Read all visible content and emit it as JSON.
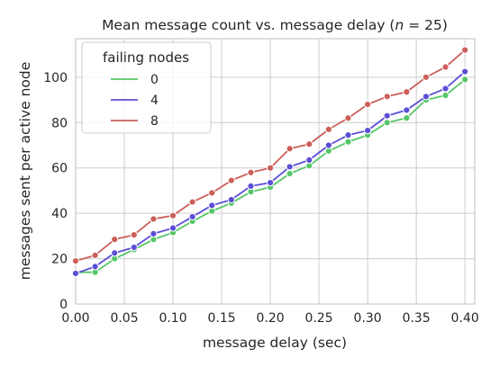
{
  "chart_data": {
    "type": "line",
    "title_prefix": "Mean message count vs. message delay (",
    "title_var": "n",
    "title_suffix": " = 25)",
    "xlabel": "message delay (sec)",
    "ylabel": "messages sent per active node",
    "xlim": [
      0.0,
      0.41
    ],
    "ylim": [
      0,
      117
    ],
    "xticks": [
      0.0,
      0.05,
      0.1,
      0.15,
      0.2,
      0.25,
      0.3,
      0.35,
      0.4
    ],
    "xtick_labels": [
      "0.00",
      "0.05",
      "0.10",
      "0.15",
      "0.20",
      "0.25",
      "0.30",
      "0.35",
      "0.40"
    ],
    "yticks": [
      0,
      20,
      40,
      60,
      80,
      100
    ],
    "ytick_labels": [
      "0",
      "20",
      "40",
      "60",
      "80",
      "100"
    ],
    "grid": true,
    "legend": {
      "title": "failing nodes",
      "placement": "top-left"
    },
    "x": [
      0.0,
      0.02,
      0.04,
      0.06,
      0.08,
      0.1,
      0.12,
      0.14,
      0.16,
      0.18,
      0.2,
      0.22,
      0.24,
      0.26,
      0.28,
      0.3,
      0.32,
      0.34,
      0.36,
      0.38,
      0.4
    ],
    "series": [
      {
        "name": "0",
        "color": "#55c667",
        "values": [
          14,
          14,
          20,
          24,
          28.5,
          31.5,
          36.5,
          41,
          44.5,
          49.5,
          51.5,
          57.5,
          61,
          67.5,
          71.5,
          74.5,
          80,
          82,
          90,
          92,
          99
        ]
      },
      {
        "name": "4",
        "color": "#5b4fd6",
        "values": [
          13.5,
          16.5,
          22.5,
          25,
          31,
          33.5,
          38.5,
          43.5,
          46,
          52,
          53.5,
          60.5,
          63.5,
          70,
          74.5,
          76.5,
          83,
          85.5,
          91.5,
          95,
          102.5
        ]
      },
      {
        "name": "8",
        "color": "#cc5f5a",
        "values": [
          19,
          21.5,
          28.5,
          30.5,
          37.5,
          39,
          45,
          49,
          54.5,
          58,
          60,
          68.5,
          70.5,
          77,
          82,
          88,
          91.5,
          93.5,
          100,
          104.5,
          112
        ]
      }
    ]
  }
}
